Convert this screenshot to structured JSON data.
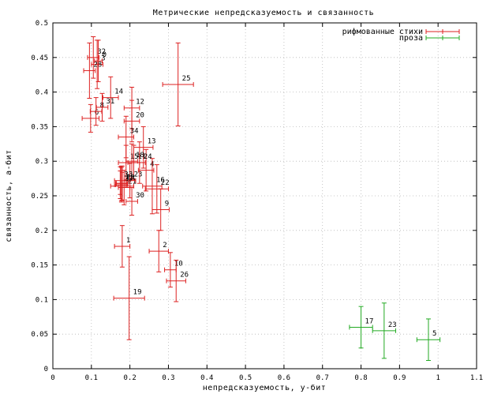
{
  "chart_data": {
    "type": "scatter",
    "title": "Метрические непредсказуемость и связанность",
    "xlabel": "непредсказуемость, у-бит",
    "ylabel": "связанность, а-бит",
    "xlim": [
      0,
      1.1
    ],
    "ylim": [
      0,
      0.5
    ],
    "x_ticks": [
      "0",
      "0.1",
      "0.2",
      "0.3",
      "0.4",
      "0.5",
      "0.6",
      "0.7",
      "0.8",
      "0.9",
      "1",
      "1.1"
    ],
    "y_ticks": [
      "0",
      "0.05",
      "0.1",
      "0.15",
      "0.2",
      "0.25",
      "0.3",
      "0.35",
      "0.4",
      "0.45",
      "0.5"
    ],
    "grid": true,
    "legend_position": "top-right",
    "error_bars": true,
    "colors": {
      "rhymed": "#dd2222",
      "prose": "#22aa22",
      "grid": "#b8b8b8",
      "axis": "#000000"
    },
    "series": [
      {
        "name": "рифмованные стихи",
        "color": "#dd2222",
        "points": [
          {
            "label": "1",
            "x": 0.18,
            "y": 0.177,
            "xerr": 0.02,
            "yerr": 0.03
          },
          {
            "label": "2",
            "x": 0.275,
            "y": 0.17,
            "xerr": 0.025,
            "yerr": 0.03
          },
          {
            "label": "3",
            "x": 0.115,
            "y": 0.44,
            "xerr": 0.015,
            "yerr": 0.035
          },
          {
            "label": "4",
            "x": 0.242,
            "y": 0.287,
            "xerr": 0.02,
            "yerr": 0.03
          },
          {
            "label": "5",
            "x": 0.18,
            "y": 0.264,
            "xerr": 0.03,
            "yerr": 0.02
          },
          {
            "label": "6",
            "x": 0.098,
            "y": 0.362,
            "xerr": 0.022,
            "yerr": 0.02
          },
          {
            "label": "7",
            "x": 0.178,
            "y": 0.268,
            "xerr": 0.015,
            "yerr": 0.025
          },
          {
            "label": "8",
            "x": 0.112,
            "y": 0.372,
            "xerr": 0.015,
            "yerr": 0.02
          },
          {
            "label": "9",
            "x": 0.28,
            "y": 0.23,
            "xerr": 0.022,
            "yerr": 0.03
          },
          {
            "label": "10",
            "x": 0.305,
            "y": 0.143,
            "xerr": 0.015,
            "yerr": 0.025
          },
          {
            "label": "11",
            "x": 0.21,
            "y": 0.298,
            "xerr": 0.015,
            "yerr": 0.025
          },
          {
            "label": "12",
            "x": 0.205,
            "y": 0.377,
            "xerr": 0.02,
            "yerr": 0.03
          },
          {
            "label": "13",
            "x": 0.235,
            "y": 0.32,
            "xerr": 0.025,
            "yerr": 0.03
          },
          {
            "label": "14",
            "x": 0.15,
            "y": 0.392,
            "xerr": 0.02,
            "yerr": 0.03
          },
          {
            "label": "15",
            "x": 0.19,
            "y": 0.298,
            "xerr": 0.02,
            "yerr": 0.025
          },
          {
            "label": "16",
            "x": 0.258,
            "y": 0.264,
            "xerr": 0.025,
            "yerr": 0.04
          },
          {
            "label": "17",
            "x": 0.178,
            "y": 0.266,
            "xerr": 0.015,
            "yerr": 0.025
          },
          {
            "label": "18",
            "x": 0.205,
            "y": 0.3,
            "xerr": 0.015,
            "yerr": 0.025
          },
          {
            "label": "19",
            "x": 0.198,
            "y": 0.102,
            "xerr": 0.04,
            "yerr": 0.06
          },
          {
            "label": "20",
            "x": 0.205,
            "y": 0.358,
            "xerr": 0.02,
            "yerr": 0.03
          },
          {
            "label": "21",
            "x": 0.185,
            "y": 0.262,
            "xerr": 0.015,
            "yerr": 0.025
          },
          {
            "label": "22",
            "x": 0.27,
            "y": 0.26,
            "xerr": 0.03,
            "yerr": 0.035
          },
          {
            "label": "23",
            "x": 0.2,
            "y": 0.272,
            "xerr": 0.015,
            "yerr": 0.025
          },
          {
            "label": "24",
            "x": 0.225,
            "y": 0.298,
            "xerr": 0.015,
            "yerr": 0.03
          },
          {
            "label": "25",
            "x": 0.325,
            "y": 0.411,
            "xerr": 0.04,
            "yerr": 0.06
          },
          {
            "label": "26",
            "x": 0.32,
            "y": 0.127,
            "xerr": 0.025,
            "yerr": 0.03
          },
          {
            "label": "27",
            "x": 0.175,
            "y": 0.266,
            "xerr": 0.015,
            "yerr": 0.02
          },
          {
            "label": "28",
            "x": 0.095,
            "y": 0.431,
            "xerr": 0.015,
            "yerr": 0.04
          },
          {
            "label": "29",
            "x": 0.18,
            "y": 0.268,
            "xerr": 0.015,
            "yerr": 0.025
          },
          {
            "label": "30",
            "x": 0.205,
            "y": 0.242,
            "xerr": 0.015,
            "yerr": 0.02
          },
          {
            "label": "31",
            "x": 0.128,
            "y": 0.378,
            "xerr": 0.015,
            "yerr": 0.02
          },
          {
            "label": "32",
            "x": 0.105,
            "y": 0.45,
            "xerr": 0.015,
            "yerr": 0.03
          },
          {
            "label": "33",
            "x": 0.175,
            "y": 0.272,
            "xerr": 0.015,
            "yerr": 0.02
          },
          {
            "label": "34",
            "x": 0.19,
            "y": 0.335,
            "xerr": 0.02,
            "yerr": 0.03
          },
          {
            "label": "0",
            "x": 0.118,
            "y": 0.445,
            "xerr": 0.01,
            "yerr": 0.03
          }
        ]
      },
      {
        "name": "проза",
        "color": "#22aa22",
        "points": [
          {
            "label": "17",
            "x": 0.8,
            "y": 0.06,
            "xerr": 0.03,
            "yerr": 0.03
          },
          {
            "label": "23",
            "x": 0.86,
            "y": 0.055,
            "xerr": 0.03,
            "yerr": 0.04
          },
          {
            "label": "5",
            "x": 0.975,
            "y": 0.042,
            "xerr": 0.03,
            "yerr": 0.03
          }
        ]
      }
    ]
  }
}
